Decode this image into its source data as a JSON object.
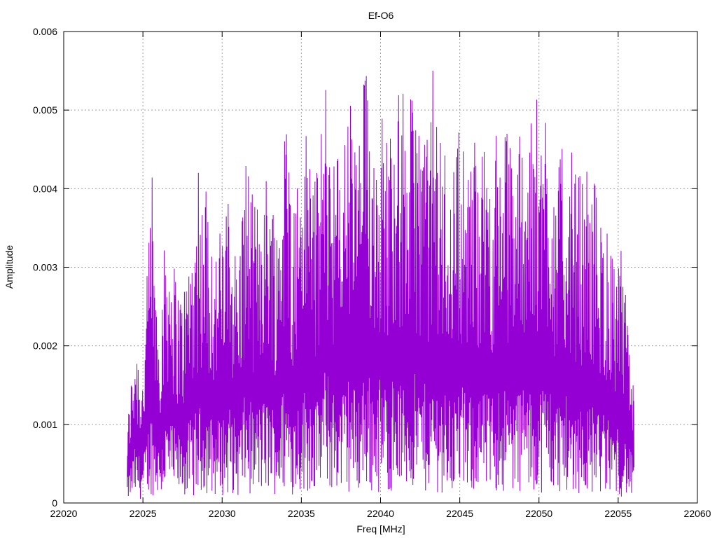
{
  "chart_data": {
    "type": "line",
    "title": "Ef-O6",
    "xlabel": "Freq [MHz]",
    "ylabel": "Amplitude",
    "xlim": [
      22020,
      22060
    ],
    "ylim": [
      0,
      0.006
    ],
    "xticks": [
      "22020",
      "22025",
      "22030",
      "22035",
      "22040",
      "22045",
      "22050",
      "22055",
      "22060"
    ],
    "yticks": [
      "0",
      "0.001",
      "0.002",
      "0.003",
      "0.004",
      "0.005",
      "0.006"
    ],
    "grid": true,
    "legend": "none",
    "series_color": "#9400D3",
    "series": [
      {
        "x": [
          22024.0,
          22024.5,
          22025.0,
          22025.5,
          22026.0,
          22026.5,
          22027.0,
          22027.5,
          22028.0,
          22028.5,
          22029.0,
          22029.5,
          22030.0,
          22030.5,
          22031.0,
          22031.5,
          22032.0,
          22032.5,
          22033.0,
          22033.5,
          22034.0,
          22034.5,
          22035.0,
          22035.5,
          22036.0,
          22036.5,
          22037.0,
          22037.5,
          22038.0,
          22038.5,
          22039.0,
          22039.5,
          22040.0,
          22040.5,
          22041.0,
          22041.5,
          22042.0,
          22042.5,
          22043.0,
          22043.5,
          22044.0,
          22044.5,
          22045.0,
          22045.5,
          22046.0,
          22046.5,
          22047.0,
          22047.5,
          22048.0,
          22048.5,
          22049.0,
          22049.5,
          22050.0,
          22050.5,
          22051.0,
          22051.5,
          22052.0,
          22052.5,
          22053.0,
          22053.5,
          22054.0,
          22054.5,
          22055.0,
          22055.5,
          22056.0
        ],
        "y": [
          0.0005,
          0.0012,
          0.0009,
          0.0021,
          0.0013,
          0.0019,
          0.0016,
          0.0014,
          0.0018,
          0.002,
          0.0022,
          0.0017,
          0.0019,
          0.0021,
          0.0016,
          0.0024,
          0.002,
          0.0022,
          0.0023,
          0.0019,
          0.0027,
          0.0021,
          0.0024,
          0.0026,
          0.0022,
          0.0029,
          0.0025,
          0.0023,
          0.0028,
          0.0024,
          0.003,
          0.0026,
          0.0027,
          0.0025,
          0.0029,
          0.0024,
          0.0028,
          0.0026,
          0.0025,
          0.0027,
          0.0024,
          0.0023,
          0.0026,
          0.0022,
          0.0025,
          0.0024,
          0.0023,
          0.0026,
          0.0025,
          0.0024,
          0.0027,
          0.0023,
          0.0025,
          0.0028,
          0.0022,
          0.0024,
          0.0021,
          0.0023,
          0.002,
          0.0022,
          0.0019,
          0.0018,
          0.0016,
          0.0014,
          0.0009
        ]
      }
    ]
  }
}
